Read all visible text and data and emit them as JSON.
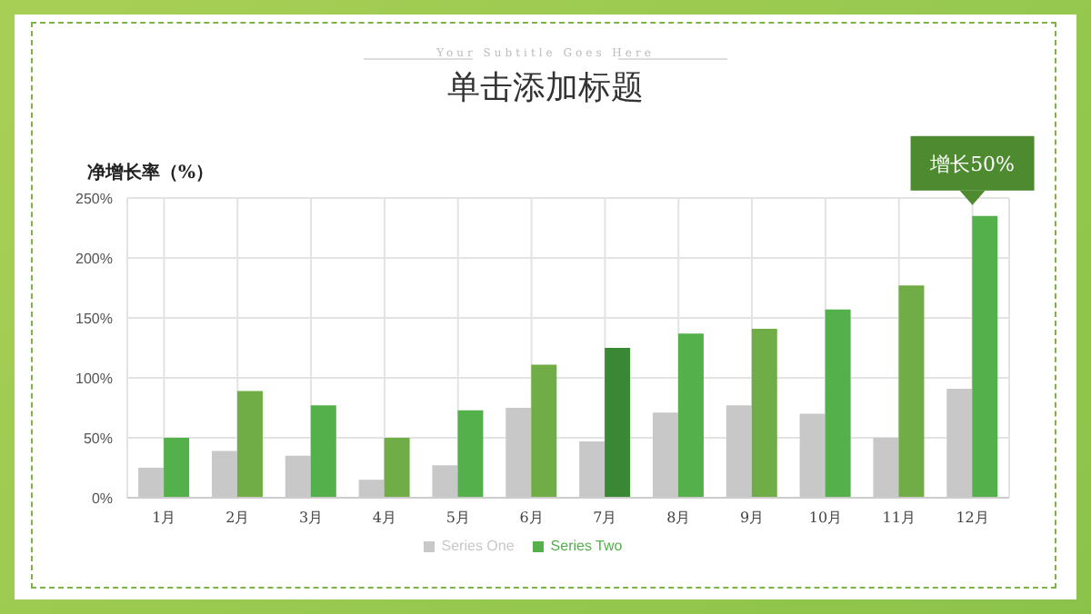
{
  "chart_data": {
    "type": "bar",
    "title": "单击添加标题",
    "subtitle": "Your Subtitle Goes Here",
    "ylabel": "净增长率（%）",
    "categories": [
      "1月",
      "2月",
      "3月",
      "4月",
      "5月",
      "6月",
      "7月",
      "8月",
      "9月",
      "10月",
      "11月",
      "12月"
    ],
    "series": [
      {
        "name": "Series One",
        "color": "#c8c8c8",
        "values": [
          25,
          39,
          35,
          15,
          27,
          75,
          47,
          71,
          77,
          70,
          50,
          91
        ]
      },
      {
        "name": "Series Two",
        "colors": [
          "#53b04a",
          "#70ad47",
          "#53b04a",
          "#70ad47",
          "#53b04a",
          "#70ad47",
          "#3a8734",
          "#53b04a",
          "#70ad47",
          "#53b04a",
          "#70ad47",
          "#53b04a"
        ],
        "values": [
          50,
          89,
          77,
          50,
          73,
          111,
          125,
          137,
          141,
          157,
          177,
          235
        ]
      }
    ],
    "ylim": [
      0,
      250
    ],
    "yticks": [
      {
        "value": 0,
        "label": "0%"
      },
      {
        "value": 50,
        "label": "50%"
      },
      {
        "value": 100,
        "label": "100%"
      },
      {
        "value": 150,
        "label": "150%"
      },
      {
        "value": 200,
        "label": "200%"
      },
      {
        "value": 250,
        "label": "250%"
      }
    ],
    "grid": true,
    "legend": "bottom",
    "annotations": [
      {
        "text": "增长50%",
        "x": "12月",
        "y": 235
      }
    ]
  }
}
